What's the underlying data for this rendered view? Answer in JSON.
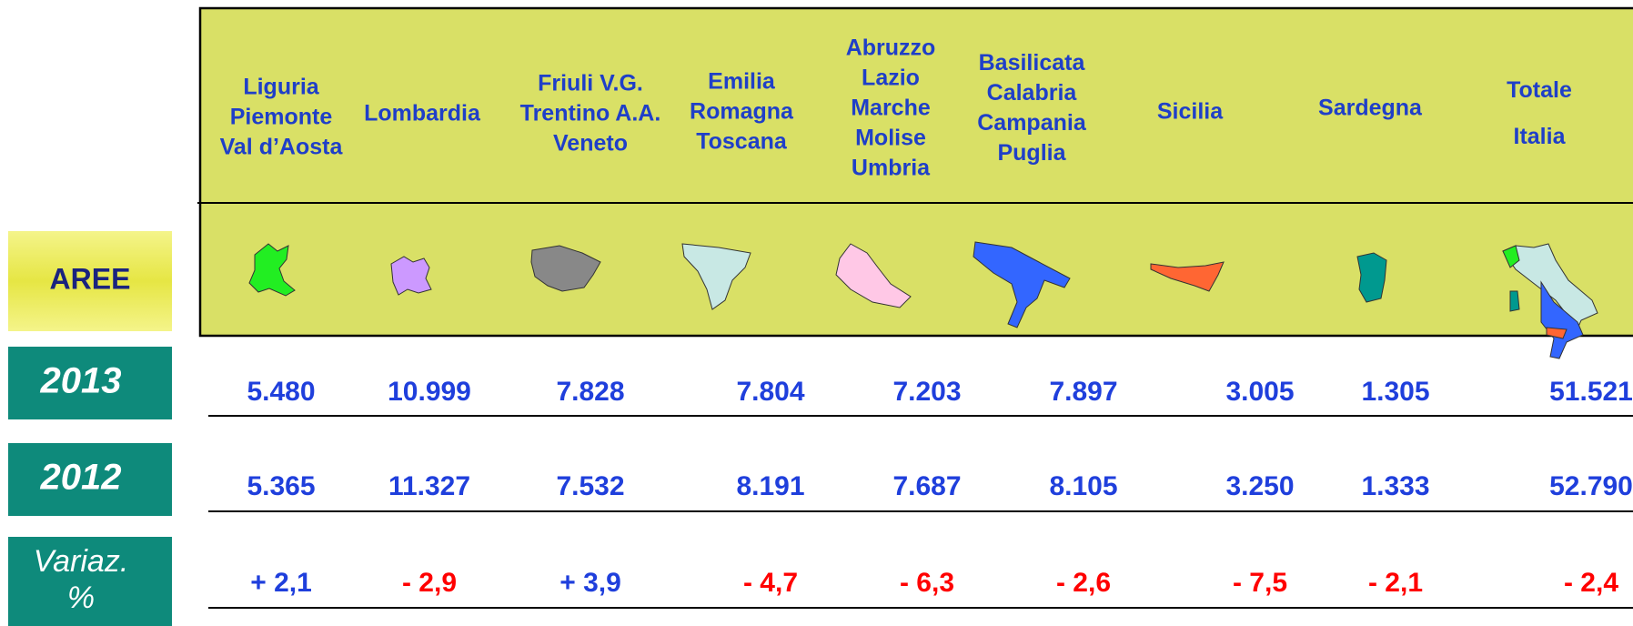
{
  "columns": [
    [
      "Liguria",
      "Piemonte",
      "Val d’Aosta"
    ],
    [
      "Lombardia"
    ],
    [
      "Friuli V.G.",
      "Trentino A.A.",
      "Veneto"
    ],
    [
      "Emilia",
      "Romagna",
      "Toscana"
    ],
    [
      "Abruzzo",
      "Lazio",
      "Marche",
      "Molise",
      "Umbria"
    ],
    [
      "Basilicata",
      "Calabria",
      "Campania",
      "Puglia"
    ],
    [
      "Sicilia"
    ],
    [
      "Sardegna"
    ],
    [
      "Totale",
      "Italia"
    ]
  ],
  "map_label": "AREE",
  "rows": [
    {
      "label": [
        "2013"
      ],
      "values": [
        "5.480",
        "10.999",
        "7.828",
        "7.804",
        "7.203",
        "7.897",
        "3.005",
        "1.305",
        "51.521"
      ]
    },
    {
      "label": [
        "2012"
      ],
      "values": [
        "5.365",
        "11.327",
        "7.532",
        "8.191",
        "7.687",
        "8.105",
        "3.250",
        "1.333",
        "52.790"
      ]
    },
    {
      "label": [
        "Variaz.",
        "%"
      ],
      "values": [
        "+ 2,1",
        "- 2,9",
        "+ 3,9",
        "- 4,7",
        "- 6,3",
        "- 2,6",
        "- 7,5",
        "- 2,1",
        "- 2,4"
      ]
    }
  ]
}
